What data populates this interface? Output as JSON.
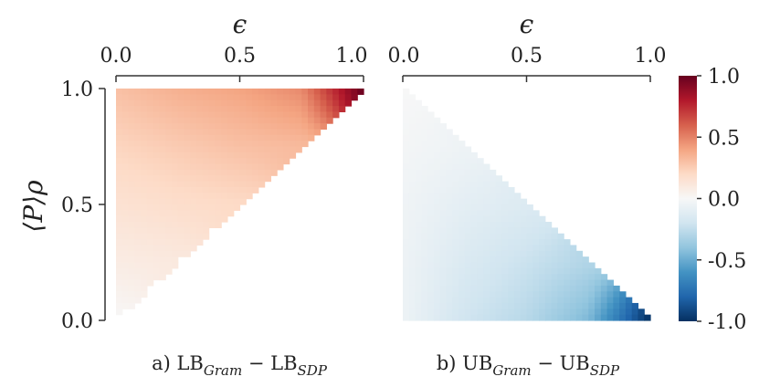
{
  "chart_data": [
    {
      "type": "heatmap",
      "panel": "a",
      "caption": {
        "prefix": "a) ",
        "a": "LB",
        "a_sub": "Gram",
        "minus": " − ",
        "b": "LB",
        "b_sub": "SDP"
      },
      "xlabel": "ϵ",
      "ylabel": "⟨P⟩ρ",
      "xlim": [
        0,
        1
      ],
      "ylim": [
        0,
        1
      ],
      "xticks": [
        "0.0",
        "0.5",
        "1.0"
      ],
      "yticks": [
        "0.0",
        "0.5",
        "1.0"
      ],
      "region": "upper-left triangle: ⟨P⟩ρ ≥ ϵ",
      "values_grid": {
        "x": [
          0.0,
          0.25,
          0.5,
          0.75,
          1.0
        ],
        "y": [
          0.0,
          0.25,
          0.5,
          0.75,
          1.0
        ],
        "z": [
          [
            0.0,
            null,
            null,
            null,
            null
          ],
          [
            0.08,
            0.1,
            null,
            null,
            null
          ],
          [
            0.15,
            0.18,
            0.2,
            null,
            null
          ],
          [
            0.22,
            0.26,
            0.3,
            0.32,
            null
          ],
          [
            0.3,
            0.36,
            0.4,
            0.48,
            1.0
          ]
        ]
      }
    },
    {
      "type": "heatmap",
      "panel": "b",
      "caption": {
        "prefix": "b) ",
        "a": "UB",
        "a_sub": "Gram",
        "minus": " − ",
        "b": "UB",
        "b_sub": "SDP"
      },
      "xlabel": "ϵ",
      "xlim": [
        0,
        1
      ],
      "ylim": [
        0,
        1
      ],
      "xticks": [
        "0.0",
        "0.5",
        "1.0"
      ],
      "region": "lower-left triangle: ⟨P⟩ρ ≤ 1 − ϵ",
      "values_grid": {
        "x": [
          0.0,
          0.25,
          0.5,
          0.75,
          1.0
        ],
        "y": [
          0.0,
          0.25,
          0.5,
          0.75,
          1.0
        ],
        "z": [
          [
            -0.05,
            -0.2,
            -0.28,
            -0.45,
            -1.0
          ],
          [
            -0.05,
            -0.15,
            -0.22,
            -0.3,
            null
          ],
          [
            -0.04,
            -0.1,
            -0.14,
            null,
            null
          ],
          [
            -0.02,
            -0.05,
            null,
            null,
            null
          ],
          [
            0.0,
            null,
            null,
            null,
            null
          ]
        ]
      }
    }
  ],
  "colorbar": {
    "range": [
      -1,
      1
    ],
    "ticks": [
      "1.0",
      "0.5",
      "0.0",
      "-0.5",
      "-1.0"
    ],
    "colormap": "RdBu_r",
    "colors": [
      "#053061",
      "#2166ac",
      "#4393c3",
      "#92c5de",
      "#d1e5f0",
      "#f7f7f7",
      "#fddbc7",
      "#f4a582",
      "#d6604d",
      "#b2182b",
      "#67001f"
    ]
  }
}
